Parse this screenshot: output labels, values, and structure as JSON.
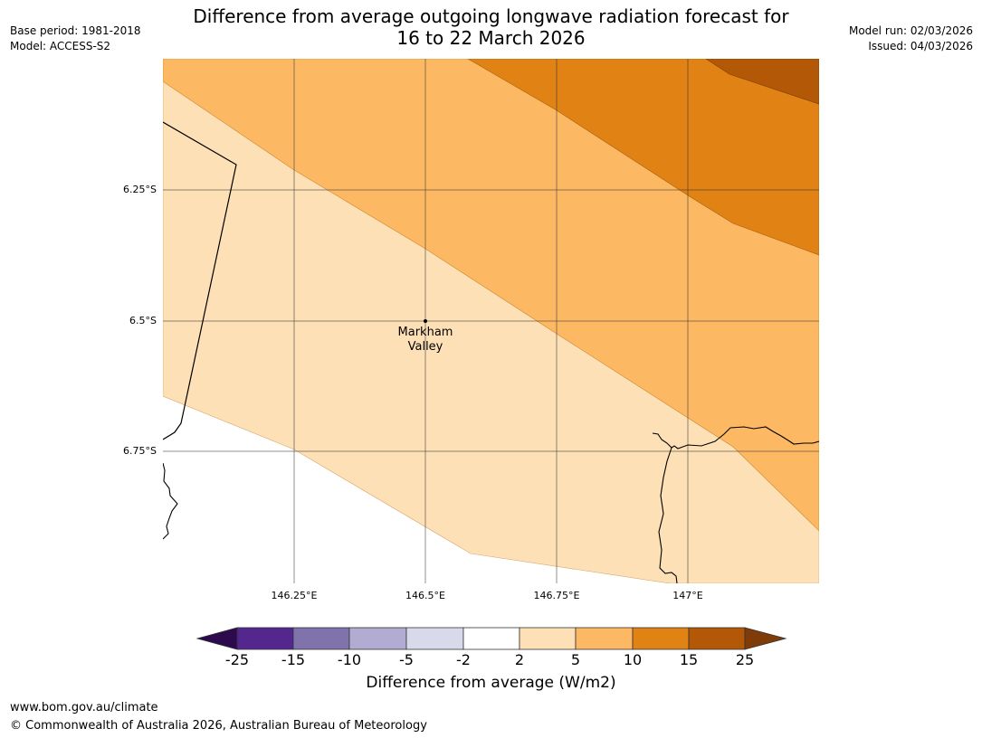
{
  "header": {
    "title_line1": "Difference from average outgoing longwave radiation forecast for",
    "title_line2": "16 to 22 March 2026",
    "base_period": "Base period: 1981-2018",
    "model": "Model: ACCESS-S2",
    "model_run": "Model run: 02/03/2026",
    "issued": "Issued: 04/03/2026"
  },
  "map": {
    "lat_labels": [
      "6.25°S",
      "6.5°S",
      "6.75°S"
    ],
    "lon_labels": [
      "146.25°E",
      "146.5°E",
      "146.75°E",
      "147°E"
    ],
    "place": {
      "name_line1": "Markham",
      "name_line2": "Valley",
      "lat": -6.5,
      "lon": 146.5
    },
    "extent": {
      "lon_min": 146.0,
      "lon_max": 147.25,
      "lat_min": -7.0,
      "lat_max": -6.0
    }
  },
  "colorbar": {
    "title": "Difference from average (W/m2)",
    "ticks": [
      "-25",
      "-15",
      "-10",
      "-5",
      "-2",
      "2",
      "5",
      "10",
      "15",
      "25"
    ],
    "colors": {
      "below_-25": "#2d0a4e",
      "-25_-15": "#54278f",
      "-15_-10": "#8073ac",
      "-10_-5": "#b2abd2",
      "-5_-2": "#d8daeb",
      "-2_2": "#ffffff",
      "2_5": "#fee0b6",
      "5_10": "#fdb863",
      "10_15": "#e08214",
      "15_25": "#b35806",
      "above_25": "#7f3b08"
    }
  },
  "footer": {
    "url": "www.bom.gov.au/climate",
    "copyright": "© Commonwealth of Australia 2026, Australian Bureau of Meteorology"
  }
}
